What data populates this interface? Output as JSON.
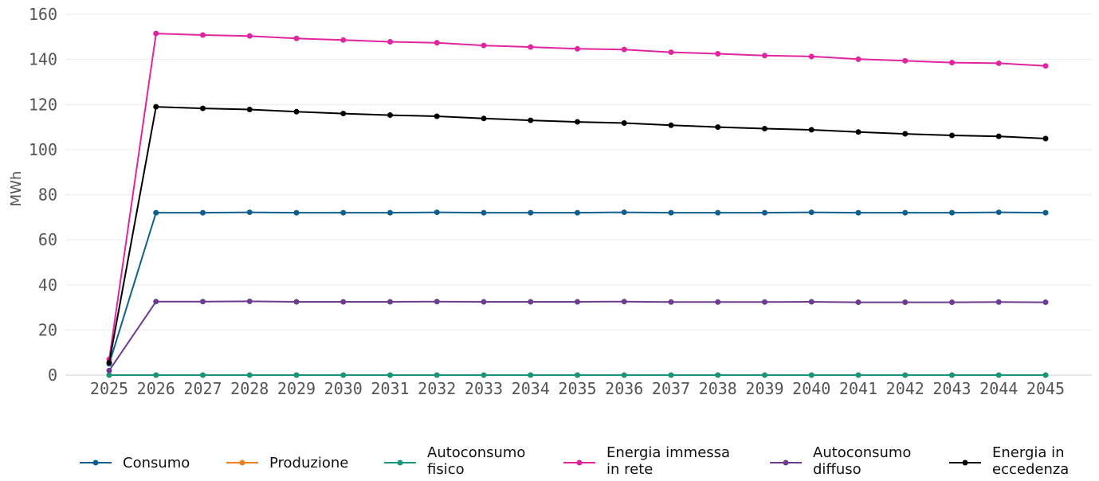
{
  "chart_data": {
    "type": "line",
    "title": "",
    "xlabel": "",
    "ylabel": "MWh",
    "ylim": [
      0,
      160
    ],
    "yticks": [
      0,
      20,
      40,
      60,
      80,
      100,
      120,
      140,
      160
    ],
    "grid": "horizontal",
    "legend_position": "bottom",
    "x": [
      "2025",
      "2026",
      "2027",
      "2028",
      "2029",
      "2030",
      "2031",
      "2032",
      "2033",
      "2034",
      "2035",
      "2036",
      "2037",
      "2038",
      "2039",
      "2040",
      "2041",
      "2042",
      "2043",
      "2044",
      "2045"
    ],
    "series": [
      {
        "name": "Consumo",
        "color": "#0f5f8c",
        "values": [
          5,
          72,
          72,
          72.2,
          72,
          72,
          72,
          72.2,
          72,
          72,
          72,
          72.2,
          72,
          72,
          72,
          72.2,
          72,
          72,
          72,
          72.2,
          72
        ]
      },
      {
        "name": "Produzione",
        "color": "#f07f1e",
        "values": [
          0,
          0,
          0,
          0,
          0,
          0,
          0,
          0,
          0,
          0,
          0,
          0,
          0,
          0,
          0,
          0,
          0,
          0,
          0,
          0,
          0
        ]
      },
      {
        "name": "Autoconsumo fisico",
        "color": "#17967a",
        "values": [
          0,
          0,
          0,
          0,
          0,
          0,
          0,
          0,
          0,
          0,
          0,
          0,
          0,
          0,
          0,
          0,
          0,
          0,
          0,
          0,
          0
        ]
      },
      {
        "name": "Energia immessa in rete",
        "color": "#e0259f",
        "values": [
          7,
          151.5,
          150.8,
          150.4,
          149.3,
          148.6,
          147.8,
          147.4,
          146.2,
          145.5,
          144.7,
          144.4,
          143.2,
          142.5,
          141.7,
          141.3,
          140.1,
          139.4,
          138.6,
          138.3,
          137.1
        ]
      },
      {
        "name": "Autoconsumo diffuso",
        "color": "#6b3c8f",
        "values": [
          2,
          32.6,
          32.6,
          32.7,
          32.5,
          32.5,
          32.5,
          32.6,
          32.5,
          32.5,
          32.5,
          32.6,
          32.4,
          32.4,
          32.4,
          32.5,
          32.3,
          32.3,
          32.3,
          32.4,
          32.3
        ]
      },
      {
        "name": "Energia in eccedenza",
        "color": "#000000",
        "values": [
          5.5,
          119,
          118.3,
          117.8,
          116.8,
          116,
          115.3,
          114.8,
          113.8,
          113,
          112.3,
          111.8,
          110.8,
          110,
          109.3,
          108.8,
          107.8,
          107,
          106.3,
          105.9,
          104.9
        ]
      }
    ],
    "legend_labels": [
      [
        "Consumo"
      ],
      [
        "Produzione"
      ],
      [
        "Autoconsumo",
        "fisico"
      ],
      [
        "Energia immessa",
        "in rete"
      ],
      [
        "Autoconsumo",
        "diffuso"
      ],
      [
        "Energia in",
        "eccedenza"
      ]
    ]
  }
}
